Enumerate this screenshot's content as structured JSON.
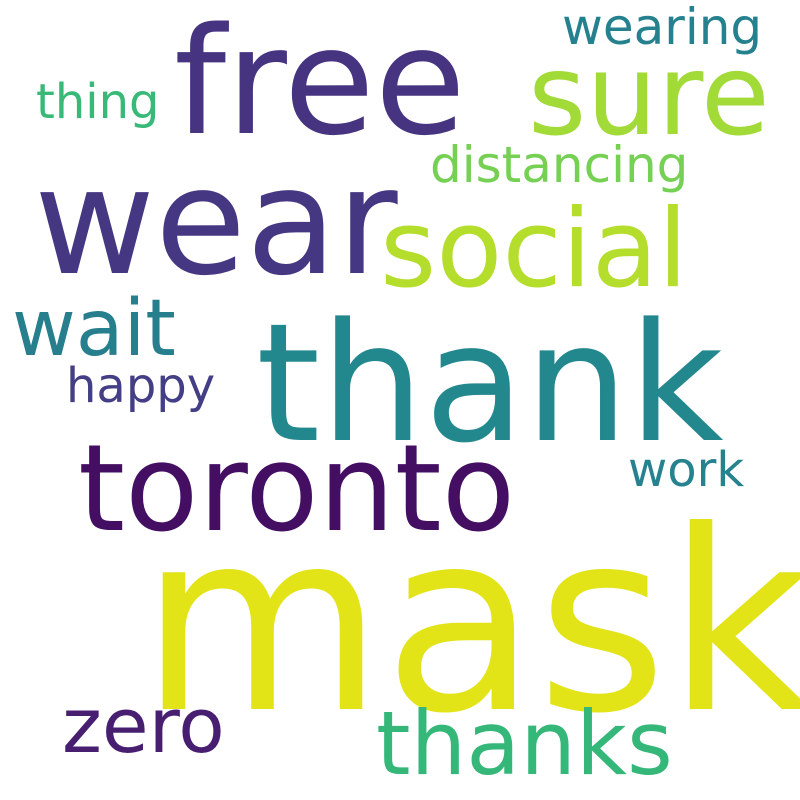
{
  "word_cloud": {
    "background_color": "#ffffff",
    "words": [
      {
        "id": "w-mask",
        "text": "mask",
        "color": "#e2e418"
      },
      {
        "id": "w-thank",
        "text": "thank",
        "color": "#23888e"
      },
      {
        "id": "w-toronto",
        "text": "toronto",
        "color": "#440f62"
      },
      {
        "id": "w-wear",
        "text": "wear",
        "color": "#453781"
      },
      {
        "id": "w-free",
        "text": "free",
        "color": "#463480"
      },
      {
        "id": "w-sure",
        "text": "sure",
        "color": "#a2da37"
      },
      {
        "id": "w-social",
        "text": "social",
        "color": "#b5dd2b"
      },
      {
        "id": "w-thanks",
        "text": "thanks",
        "color": "#35b779"
      },
      {
        "id": "w-zero",
        "text": "zero",
        "color": "#481f70"
      },
      {
        "id": "w-wait",
        "text": "wait",
        "color": "#277f8e"
      },
      {
        "id": "w-distancing",
        "text": "distancing",
        "color": "#75d054"
      },
      {
        "id": "w-wearing",
        "text": "wearing",
        "color": "#26818e"
      },
      {
        "id": "w-thing",
        "text": "thing",
        "color": "#38b977"
      },
      {
        "id": "w-happy",
        "text": "happy",
        "color": "#433e85"
      },
      {
        "id": "w-work",
        "text": "work",
        "color": "#26828e"
      }
    ]
  }
}
